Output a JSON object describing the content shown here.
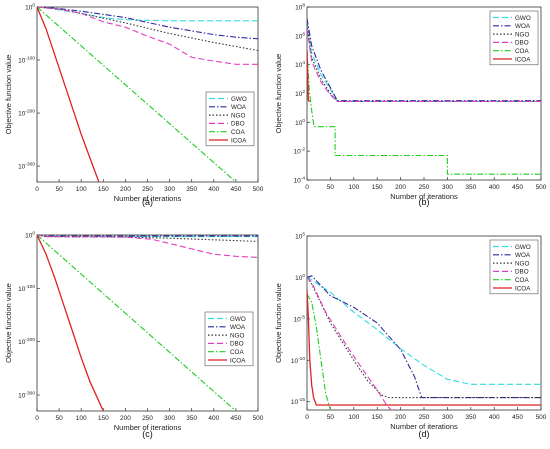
{
  "colors": {
    "GWO": "#33dddd",
    "WOA": "#2b2b9e",
    "NGO": "#333333",
    "DBO": "#e040c0",
    "COA": "#22cc22",
    "ICOA": "#dd2222"
  },
  "chart_data": [
    {
      "type": "line",
      "panel_label": "(a)",
      "xlabel": "Number of iterations",
      "ylabel": "Objective function value",
      "xlim": [
        0,
        500
      ],
      "xticks": [
        0,
        50,
        100,
        150,
        200,
        250,
        300,
        350,
        400,
        450,
        500
      ],
      "ylim": [
        -330,
        0
      ],
      "yscale": "log",
      "yticks": [
        {
          "v": 0,
          "label": "10^0"
        },
        {
          "v": -100,
          "label": "10^-100"
        },
        {
          "v": -200,
          "label": "10^-200"
        },
        {
          "v": -300,
          "label": "10^-300"
        }
      ],
      "legend_position": "right-middle",
      "legend": [
        "GWO",
        "WOA",
        "NGO",
        "DBO",
        "COA",
        "ICOA"
      ],
      "series": [
        {
          "name": "GWO",
          "style": "dash",
          "x": [
            0,
            30,
            100,
            150,
            200,
            250,
            300,
            400,
            500
          ],
          "y": [
            0,
            -3,
            -12,
            -20,
            -24,
            -25,
            -26,
            -26,
            -26
          ]
        },
        {
          "name": "WOA",
          "style": "dashdot",
          "x": [
            0,
            40,
            100,
            200,
            300,
            400,
            450,
            500
          ],
          "y": [
            0,
            -2,
            -8,
            -20,
            -38,
            -52,
            -57,
            -60
          ]
        },
        {
          "name": "NGO",
          "style": "dot",
          "x": [
            0,
            50,
            100,
            200,
            300,
            400,
            500
          ],
          "y": [
            0,
            -4,
            -12,
            -30,
            -50,
            -67,
            -82
          ]
        },
        {
          "name": "DBO",
          "style": "dash",
          "x": [
            0,
            50,
            100,
            150,
            200,
            250,
            300,
            350,
            400,
            450,
            500
          ],
          "y": [
            0,
            -4,
            -12,
            -28,
            -38,
            -55,
            -70,
            -95,
            -102,
            -108,
            -108
          ]
        },
        {
          "name": "COA",
          "style": "dashdot",
          "x": [
            0,
            450
          ],
          "y": [
            0,
            -330
          ]
        },
        {
          "name": "ICOA",
          "style": "solid",
          "x": [
            0,
            20,
            40,
            60,
            80,
            100,
            120,
            140
          ],
          "y": [
            0,
            -40,
            -90,
            -140,
            -190,
            -240,
            -285,
            -330
          ]
        }
      ]
    },
    {
      "type": "line",
      "panel_label": "(b)",
      "xlabel": "Number of iterations",
      "ylabel": "Objective function value",
      "xlim": [
        0,
        500
      ],
      "xticks": [
        0,
        50,
        100,
        150,
        200,
        250,
        300,
        350,
        400,
        450,
        500
      ],
      "ylim": [
        -4,
        8
      ],
      "yscale": "log",
      "yticks": [
        {
          "v": 8,
          "label": "10^8"
        },
        {
          "v": 6,
          "label": "10^6"
        },
        {
          "v": 4,
          "label": "10^4"
        },
        {
          "v": 2,
          "label": "10^2"
        },
        {
          "v": 0,
          "label": "10^0"
        },
        {
          "v": -2,
          "label": "10^-2"
        },
        {
          "v": -4,
          "label": "10^-4"
        }
      ],
      "legend_position": "top-right",
      "legend": [
        "GWO",
        "WOA",
        "NGO",
        "DBO",
        "COA",
        "ICOA"
      ],
      "series": [
        {
          "name": "GWO",
          "style": "dash",
          "x": [
            0,
            10,
            30,
            50,
            65,
            500
          ],
          "y": [
            7,
            4.8,
            3.3,
            2.3,
            1.45,
            1.45
          ]
        },
        {
          "name": "WOA",
          "style": "dashdot",
          "x": [
            0,
            10,
            30,
            50,
            65,
            500
          ],
          "y": [
            7.2,
            5.3,
            3.6,
            2.4,
            1.5,
            1.5
          ]
        },
        {
          "name": "NGO",
          "style": "dot",
          "x": [
            0,
            10,
            30,
            50,
            65,
            500
          ],
          "y": [
            6.8,
            4.5,
            3.0,
            2.0,
            1.45,
            1.45
          ]
        },
        {
          "name": "DBO",
          "style": "dash",
          "x": [
            0,
            10,
            30,
            50,
            65,
            500
          ],
          "y": [
            6.5,
            4.2,
            2.8,
            1.9,
            1.45,
            1.45
          ]
        },
        {
          "name": "COA",
          "style": "dashdot",
          "x": [
            0,
            5,
            10,
            15,
            20,
            60,
            60,
            300,
            300,
            500
          ],
          "y": [
            5,
            2.2,
            0.8,
            -0.3,
            -0.3,
            -0.3,
            -2.3,
            -2.3,
            -3.6,
            -3.6
          ]
        },
        {
          "name": "ICOA",
          "style": "solid",
          "x": [
            0,
            3,
            6
          ],
          "y": [
            5,
            1.5,
            1.45
          ]
        }
      ]
    },
    {
      "type": "line",
      "panel_label": "(c)",
      "xlabel": "Number of iterations",
      "ylabel": "Objective function value",
      "xlim": [
        0,
        500
      ],
      "xticks": [
        0,
        50,
        100,
        150,
        200,
        250,
        300,
        350,
        400,
        450,
        500
      ],
      "ylim": [
        -330,
        0
      ],
      "yscale": "log",
      "yticks": [
        {
          "v": 0,
          "label": "10^0"
        },
        {
          "v": -100,
          "label": "10^-100"
        },
        {
          "v": -200,
          "label": "10^-200"
        },
        {
          "v": -300,
          "label": "10^-300"
        }
      ],
      "legend_position": "left-middle",
      "legend": [
        "GWO",
        "WOA",
        "NGO",
        "DBO",
        "COA",
        "ICOA"
      ],
      "series": [
        {
          "name": "GWO",
          "style": "dash",
          "x": [
            0,
            20,
            500
          ],
          "y": [
            0,
            -3,
            -3
          ]
        },
        {
          "name": "WOA",
          "style": "dashdot",
          "x": [
            0,
            20,
            500
          ],
          "y": [
            0,
            -2,
            -2
          ]
        },
        {
          "name": "NGO",
          "style": "dot",
          "x": [
            0,
            20,
            200,
            300,
            400,
            500
          ],
          "y": [
            0,
            -3,
            -4,
            -6,
            -9,
            -12
          ]
        },
        {
          "name": "DBO",
          "style": "dash",
          "x": [
            0,
            20,
            200,
            260,
            300,
            350,
            400,
            450,
            500
          ],
          "y": [
            0,
            -3,
            -4,
            -8,
            -16,
            -26,
            -36,
            -40,
            -42
          ]
        },
        {
          "name": "COA",
          "style": "dashdot",
          "x": [
            0,
            450
          ],
          "y": [
            0,
            -330
          ]
        },
        {
          "name": "ICOA",
          "style": "solid",
          "x": [
            0,
            20,
            40,
            60,
            80,
            100,
            120,
            150
          ],
          "y": [
            0,
            -35,
            -80,
            -130,
            -180,
            -230,
            -275,
            -330
          ]
        }
      ]
    },
    {
      "type": "line",
      "panel_label": "(d)",
      "xlabel": "Number of iterations",
      "ylabel": "Objective function value",
      "xlim": [
        0,
        500
      ],
      "xticks": [
        0,
        50,
        100,
        150,
        200,
        250,
        300,
        350,
        400,
        450,
        500
      ],
      "ylim": [
        -16,
        5
      ],
      "yscale": "log",
      "yticks": [
        {
          "v": 5,
          "label": "10^5"
        },
        {
          "v": 0,
          "label": "10^0"
        },
        {
          "v": -5,
          "label": "10^-5"
        },
        {
          "v": -10,
          "label": "10^-10"
        },
        {
          "v": -15,
          "label": "10^-15"
        }
      ],
      "legend_position": "top-right",
      "legend": [
        "GWO",
        "WOA",
        "NGO",
        "DBO",
        "COA",
        "ICOA"
      ],
      "series": [
        {
          "name": "GWO",
          "style": "dash",
          "x": [
            0,
            10,
            50,
            100,
            150,
            200,
            250,
            300,
            350,
            400,
            450,
            500
          ],
          "y": [
            0,
            -0.3,
            -1.8,
            -4.2,
            -6.3,
            -8.6,
            -10.6,
            -12.3,
            -12.9,
            -12.9,
            -12.9,
            -12.9
          ]
        },
        {
          "name": "WOA",
          "style": "dashdot",
          "x": [
            0,
            10,
            50,
            100,
            150,
            200,
            230,
            245,
            250,
            500
          ],
          "y": [
            0,
            0.2,
            -2.2,
            -3.6,
            -5.5,
            -8.7,
            -12,
            -14.5,
            -14.5,
            -14.5
          ]
        },
        {
          "name": "NGO",
          "style": "dot",
          "x": [
            0,
            10,
            50,
            100,
            130,
            160,
            175,
            500
          ],
          "y": [
            0,
            -0.8,
            -5.5,
            -10,
            -12.5,
            -14.2,
            -14.5,
            -14.5
          ]
        },
        {
          "name": "DBO",
          "style": "dash",
          "x": [
            0,
            10,
            40,
            80,
            120,
            150,
            170,
            180
          ],
          "y": [
            0,
            -0.6,
            -4.2,
            -7.8,
            -11.2,
            -13.6,
            -15.4,
            -16
          ]
        },
        {
          "name": "COA",
          "style": "dashdot",
          "x": [
            0,
            10,
            20,
            30,
            40,
            50
          ],
          "y": [
            -2,
            -3,
            -6,
            -10,
            -14,
            -16
          ]
        },
        {
          "name": "ICOA",
          "style": "solid",
          "x": [
            0,
            3,
            6,
            10,
            14,
            20,
            500
          ],
          "y": [
            -1.5,
            -5,
            -10,
            -13,
            -14.5,
            -15.4,
            -15.4
          ]
        }
      ]
    }
  ]
}
